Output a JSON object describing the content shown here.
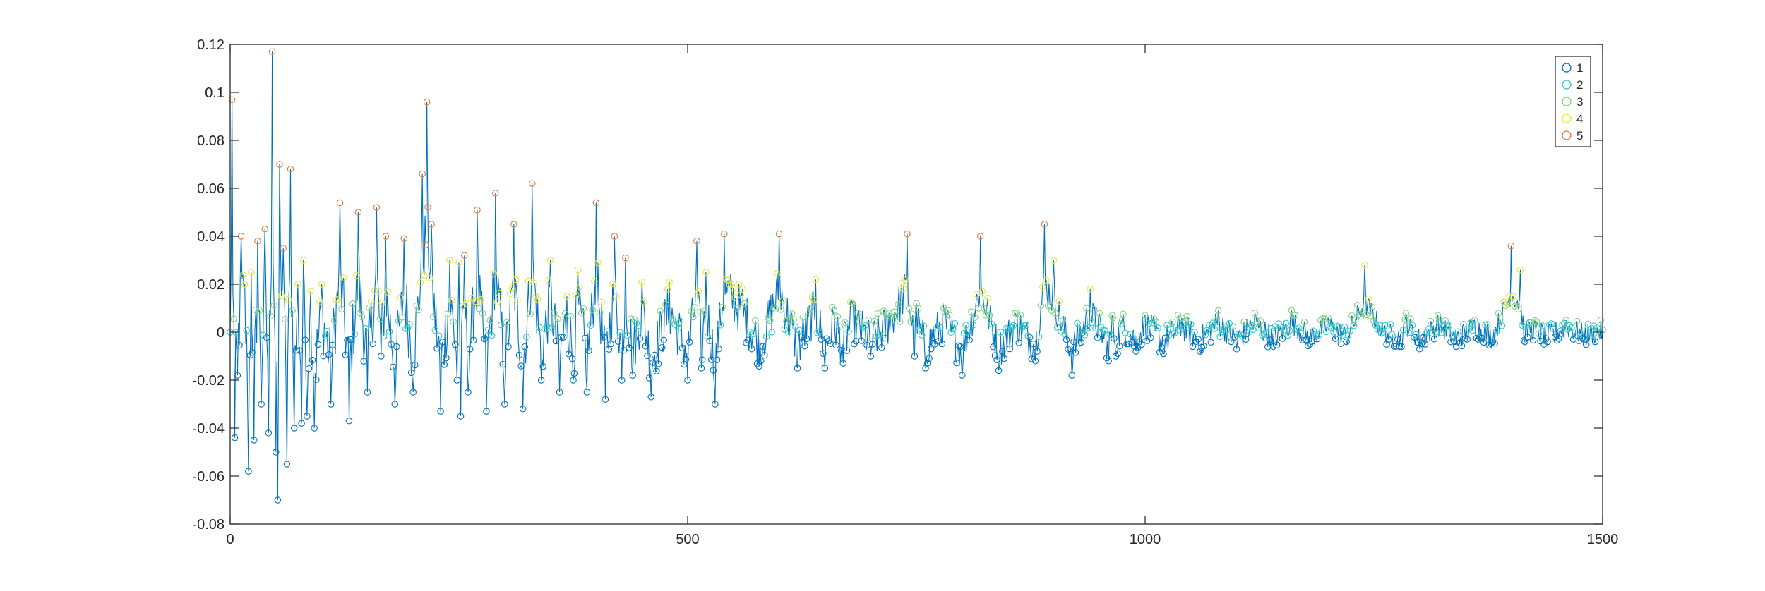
{
  "chart_data": {
    "type": "scatter",
    "title": "",
    "xlabel": "",
    "ylabel": "",
    "xlim": [
      0,
      1500
    ],
    "ylim": [
      -0.08,
      0.12
    ],
    "xticks": [
      0,
      500,
      1000,
      1500
    ],
    "xtick_labels": [
      "0",
      "500",
      "1000",
      "1500"
    ],
    "yticks": [
      -0.08,
      -0.06,
      -0.04,
      -0.02,
      0,
      0.02,
      0.04,
      0.06,
      0.08,
      0.1,
      0.12
    ],
    "ytick_labels": [
      "-0.08",
      "-0.06",
      "-0.04",
      "-0.02",
      "0",
      "0.02",
      "0.04",
      "0.06",
      "0.08",
      "0.1",
      "0.12"
    ],
    "grid": false,
    "legend_position": "top-right",
    "line": {
      "color": "#0072BD",
      "description": "signal trace connecting every sample"
    },
    "series": [
      {
        "name": "1",
        "color": "#0072BD",
        "marker": "o"
      },
      {
        "name": "2",
        "color": "#2EC9C9",
        "marker": "o"
      },
      {
        "name": "3",
        "color": "#7ED37E",
        "marker": "o"
      },
      {
        "name": "4",
        "color": "#E6E632",
        "marker": "o"
      },
      {
        "name": "5",
        "color": "#E07A3C",
        "marker": "o"
      }
    ],
    "signal_keypoints": {
      "x": [
        0,
        2,
        5,
        8,
        12,
        16,
        20,
        23,
        26,
        30,
        34,
        38,
        42,
        46,
        50,
        52,
        54,
        58,
        62,
        66,
        70,
        74,
        78,
        80,
        84,
        88,
        92,
        100,
        110,
        120,
        130,
        140,
        150,
        160,
        165,
        170,
        180,
        190,
        200,
        210,
        215,
        220,
        230,
        240,
        248,
        250,
        252,
        256,
        260,
        270,
        280,
        290,
        300,
        310,
        320,
        330,
        340,
        350,
        360,
        368,
        375,
        380,
        390,
        400,
        410,
        420,
        428,
        432,
        440,
        450,
        460,
        480,
        500,
        510,
        515,
        520,
        530,
        540,
        560,
        580,
        600,
        620,
        640,
        650,
        660,
        670,
        680,
        700,
        720,
        740,
        748,
        750,
        760,
        780,
        800,
        820,
        840,
        860,
        880,
        890,
        900,
        920,
        940,
        960,
        965,
        968,
        975,
        990,
        1000,
        1020,
        1040,
        1060,
        1080,
        1100,
        1120,
        1140,
        1160,
        1180,
        1200,
        1220,
        1240,
        1260,
        1280,
        1285,
        1300,
        1320,
        1340,
        1360,
        1380,
        1400,
        1410,
        1415,
        1420,
        1440,
        1460,
        1480,
        1500
      ],
      "y": [
        0.0,
        0.097,
        -0.044,
        -0.018,
        0.04,
        0.02,
        -0.058,
        0.025,
        -0.045,
        0.038,
        -0.03,
        0.043,
        -0.042,
        0.117,
        -0.05,
        -0.07,
        0.07,
        0.035,
        -0.055,
        0.068,
        -0.04,
        0.02,
        -0.038,
        0.03,
        -0.035,
        0.017,
        -0.04,
        0.02,
        -0.03,
        0.054,
        -0.037,
        0.05,
        -0.025,
        0.052,
        -0.01,
        0.04,
        -0.03,
        0.039,
        -0.025,
        0.066,
        0.096,
        0.045,
        -0.033,
        0.03,
        -0.02,
        0.029,
        -0.035,
        0.032,
        -0.025,
        0.051,
        -0.033,
        0.058,
        -0.03,
        0.045,
        -0.032,
        0.062,
        -0.02,
        0.03,
        -0.025,
        0.015,
        -0.02,
        0.026,
        -0.025,
        0.054,
        -0.028,
        0.04,
        -0.02,
        0.031,
        -0.018,
        0.021,
        -0.027,
        0.021,
        -0.02,
        0.038,
        -0.015,
        0.025,
        -0.03,
        0.041,
        0.018,
        -0.012,
        0.041,
        -0.015,
        0.022,
        -0.015,
        0.009,
        -0.013,
        0.012,
        -0.01,
        0.008,
        0.041,
        -0.01,
        0.012,
        -0.015,
        0.01,
        -0.018,
        0.04,
        -0.016,
        0.008,
        -0.012,
        0.045,
        0.03,
        -0.018,
        0.018,
        -0.012,
        0.006,
        -0.01,
        0.005,
        -0.008,
        0.007,
        -0.009,
        0.006,
        -0.008,
        0.009,
        -0.007,
        0.008,
        -0.006,
        0.009,
        -0.005,
        0.006,
        -0.004,
        0.028,
        0.0,
        -0.006,
        0.008,
        -0.007,
        0.007,
        -0.006,
        0.005,
        -0.004,
        0.036,
        0.026,
        -0.004,
        0.004,
        -0.004,
        0.005,
        -0.003,
        0.001
      ]
    },
    "legend_labels": [
      "1",
      "2",
      "3",
      "4",
      "5"
    ]
  }
}
